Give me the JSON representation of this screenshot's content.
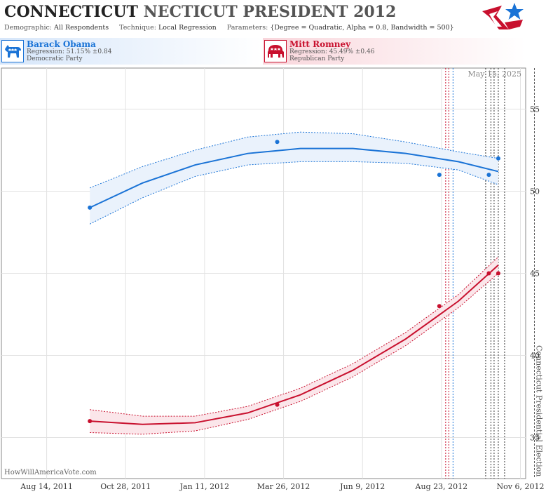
{
  "header": {
    "title_main": "CONNECTICUT",
    "title_rest": "NECTICUT PRESIDENT 2012",
    "demographic_label": "Demographic:",
    "demographic_value": "All Respondents",
    "technique_label": "Technique:",
    "technique_value": "Local Regression",
    "parameters_label": "Parameters:",
    "parameters_value": "{Degree = Quadratic, Alpha = 0.8, Bandwidth = 500}"
  },
  "logo": {
    "icon": "star-flag-logo",
    "colors": [
      "#c8102e",
      "#1a73d6"
    ]
  },
  "candidates": [
    {
      "name": "Barack Obama",
      "regression": "Regression: 51.15% ±0.84",
      "party": "Democratic Party",
      "icon": "donkey-icon",
      "color": "#1a73d6"
    },
    {
      "name": "Mitt Romney",
      "regression": "Regression: 45.49% ±0.46",
      "party": "Republican Party",
      "icon": "elephant-icon",
      "color": "#c8102e"
    }
  ],
  "watermark": "HowWillAmericaVote.com",
  "chart_data": {
    "type": "line",
    "date_label": "May 15, 2025",
    "x_range": [
      "2011-07-02",
      "2012-11-11"
    ],
    "y_range": [
      32.5,
      57.5
    ],
    "y_ticks": [
      35,
      40,
      45,
      50,
      55
    ],
    "x_ticks": [
      {
        "date": "2011-08-14",
        "label": "Aug 14, 2011"
      },
      {
        "date": "2011-10-28",
        "label": "Oct 28, 2011"
      },
      {
        "date": "2012-01-11",
        "label": "Jan 11, 2012"
      },
      {
        "date": "2012-03-26",
        "label": "Mar 26, 2012"
      },
      {
        "date": "2012-06-09",
        "label": "Jun 9, 2012"
      },
      {
        "date": "2012-08-23",
        "label": "Aug 23, 2012"
      },
      {
        "date": "2012-11-06",
        "label": "Nov 6, 2012"
      }
    ],
    "grid": true,
    "annotation": {
      "text": "Connecticut Presidential Election",
      "date": "2012-11-06"
    },
    "event_lines": [
      {
        "date": "2012-08-27",
        "color": "#c8102e"
      },
      {
        "date": "2012-08-30",
        "color": "#c8102e"
      },
      {
        "date": "2012-09-03",
        "color": "#1a73d6"
      },
      {
        "date": "2012-10-04",
        "color": "#333333"
      },
      {
        "date": "2012-10-09",
        "color": "#333333"
      },
      {
        "date": "2012-10-12",
        "color": "#333333"
      },
      {
        "date": "2012-10-16",
        "color": "#333333"
      },
      {
        "date": "2012-10-22",
        "color": "#333333"
      }
    ],
    "series": [
      {
        "name": "Barack Obama",
        "color": "#1a73d6",
        "band_color": "#eaf2fc",
        "points": [
          {
            "x": "2011-09-24",
            "y": 49
          },
          {
            "x": "2012-03-20",
            "y": 53
          },
          {
            "x": "2012-08-21",
            "y": 51
          },
          {
            "x": "2012-10-07",
            "y": 51
          },
          {
            "x": "2012-10-16",
            "y": 52
          }
        ],
        "trend": [
          {
            "x": "2011-09-24",
            "y": 49.0,
            "lo": 48.0,
            "hi": 50.2
          },
          {
            "x": "2011-11-13",
            "y": 50.5,
            "lo": 49.6,
            "hi": 51.5
          },
          {
            "x": "2012-01-02",
            "y": 51.6,
            "lo": 50.9,
            "hi": 52.5
          },
          {
            "x": "2012-02-21",
            "y": 52.3,
            "lo": 51.6,
            "hi": 53.3
          },
          {
            "x": "2012-04-11",
            "y": 52.6,
            "lo": 51.8,
            "hi": 53.6
          },
          {
            "x": "2012-05-31",
            "y": 52.6,
            "lo": 51.8,
            "hi": 53.5
          },
          {
            "x": "2012-07-20",
            "y": 52.3,
            "lo": 51.7,
            "hi": 53.0
          },
          {
            "x": "2012-09-08",
            "y": 51.8,
            "lo": 51.3,
            "hi": 52.4
          },
          {
            "x": "2012-10-16",
            "y": 51.2,
            "lo": 50.4,
            "hi": 52.0
          }
        ]
      },
      {
        "name": "Mitt Romney",
        "color": "#c8102e",
        "band_color": "#fbe6ea",
        "points": [
          {
            "x": "2011-09-24",
            "y": 36
          },
          {
            "x": "2012-03-20",
            "y": 37
          },
          {
            "x": "2012-08-21",
            "y": 43
          },
          {
            "x": "2012-10-07",
            "y": 45
          },
          {
            "x": "2012-10-16",
            "y": 45
          }
        ],
        "trend": [
          {
            "x": "2011-09-24",
            "y": 36.0,
            "lo": 35.3,
            "hi": 36.7
          },
          {
            "x": "2011-11-13",
            "y": 35.8,
            "lo": 35.2,
            "hi": 36.3
          },
          {
            "x": "2012-01-02",
            "y": 35.9,
            "lo": 35.4,
            "hi": 36.3
          },
          {
            "x": "2012-02-21",
            "y": 36.5,
            "lo": 36.1,
            "hi": 36.9
          },
          {
            "x": "2012-04-11",
            "y": 37.6,
            "lo": 37.2,
            "hi": 38.0
          },
          {
            "x": "2012-05-31",
            "y": 39.1,
            "lo": 38.7,
            "hi": 39.5
          },
          {
            "x": "2012-07-20",
            "y": 41.0,
            "lo": 40.6,
            "hi": 41.4
          },
          {
            "x": "2012-09-08",
            "y": 43.3,
            "lo": 42.9,
            "hi": 43.7
          },
          {
            "x": "2012-10-16",
            "y": 45.5,
            "lo": 45.0,
            "hi": 46.0
          }
        ]
      }
    ]
  }
}
